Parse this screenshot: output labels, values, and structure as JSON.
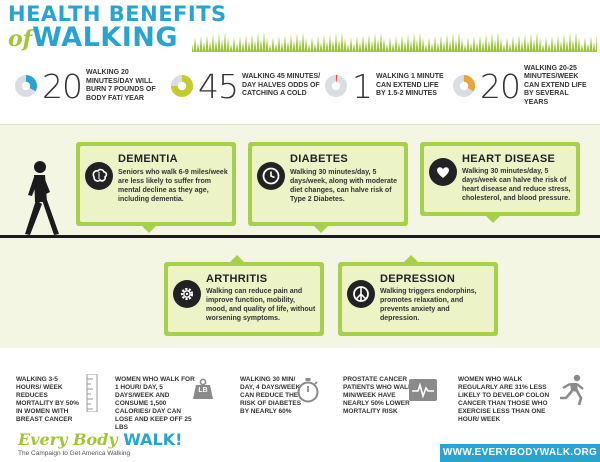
{
  "header": {
    "title_line1": "HEALTH BENEFITS",
    "title_of": "of",
    "title_walking": "WALKING"
  },
  "stats": [
    {
      "number": "20",
      "text": "WALKING 20 MINUTES/DAY WILL BURN 7 POUNDS OF BODY FAT/ YEAR",
      "icon": "pie-chart-icon",
      "fraction": 0.33,
      "color": "#2ba3cf"
    },
    {
      "number": "45",
      "text": "WALKING 45 MINUTES/ DAY HALVES ODDS OF CATCHING A COLD",
      "icon": "pie-chart-icon",
      "fraction": 0.75,
      "color": "#c3cc2c"
    },
    {
      "number": "1",
      "text": "WALKING 1 MINUTE CAN EXTEND LIFE BY 1.5-2 MINUTES",
      "icon": "pie-chart-icon",
      "fraction": 0.02,
      "color": "#e0443a"
    },
    {
      "number": "20",
      "text": "WALKING 20-25 MINUTES/WEEK CAN EXTEND LIFE BY SEVERAL YEARS",
      "icon": "pie-chart-icon",
      "fraction": 0.33,
      "color": "#e9a33a"
    }
  ],
  "conditions": {
    "dementia": {
      "title": "DEMENTIA",
      "body": "Seniors who walk 6-9 miles/week are less likely to suffer from mental decline as they age, including dementia.",
      "icon": "brain-icon"
    },
    "diabetes": {
      "title": "DIABETES",
      "body": "Walking 30 minutes/day, 5 days/week, along with moderate diet changes, can halve risk of Type 2 Diabetes.",
      "icon": "clock-icon"
    },
    "heart": {
      "title": "HEART DISEASE",
      "body": "Walking 30 minutes/day, 5 days/week can halve the risk of heart disease and reduce stress, cholesterol, and blood pressure.",
      "icon": "heart-icon"
    },
    "arthritis": {
      "title": "ARTHRITIS",
      "body": "Walking can reduce pain and improve function, mobility, mood, and quality of life, without worsening symptoms.",
      "icon": "gear-icon"
    },
    "depression": {
      "title": "DEPRESSION",
      "body": "Walking triggers endorphins, promotes relaxation, and prevents anxiety and depression.",
      "icon": "peace-icon"
    }
  },
  "facts": [
    {
      "text": "WALKING 3-5 HOURS/ WEEK REDUCES MORTALITY BY 50% IN WOMEN WITH BREAST CANCER",
      "icon": "ruler-icon"
    },
    {
      "text": "WOMEN WHO WALK FOR 1 HOUR/ DAY, 5 DAYS/WEEK AND CONSUME 1,500 CALORIES/ DAY CAN LOSE AND KEEP OFF 25 LBS",
      "icon": "weight-icon",
      "icon_label": "LB"
    },
    {
      "text": "WALKING 30 MIN/ DAY, 4 DAYS/WEEK CAN REDUCE THE RISK OF DIABETES BY NEARLY 60%",
      "icon": "stopwatch-icon"
    },
    {
      "text": "PROSTATE CANCER PATIENTS WHO WALK 90 MIN/WEEK HAVE NEARLY 50% LOWER MORTALITY RISK",
      "icon": "heart-monitor-icon"
    },
    {
      "text": "WOMEN WHO WALK REGULARLY ARE 31% LESS LIKELY TO DEVELOP COLON CANCER THAN THOSE WHO EXERCISE LESS THAN ONE HOUR/ WEEK",
      "icon": "runner-icon"
    }
  ],
  "footer": {
    "logo_part1": "Every Body ",
    "logo_part2": "WALK!",
    "tagline": "The Campaign to Get America Walking",
    "url": "WWW.EVERYBODYWALK.ORG"
  },
  "colors": {
    "blue": "#2ba3cf",
    "green": "#a8cf4b",
    "light_green": "#ecf3c6",
    "band": "#f4f6e4"
  }
}
